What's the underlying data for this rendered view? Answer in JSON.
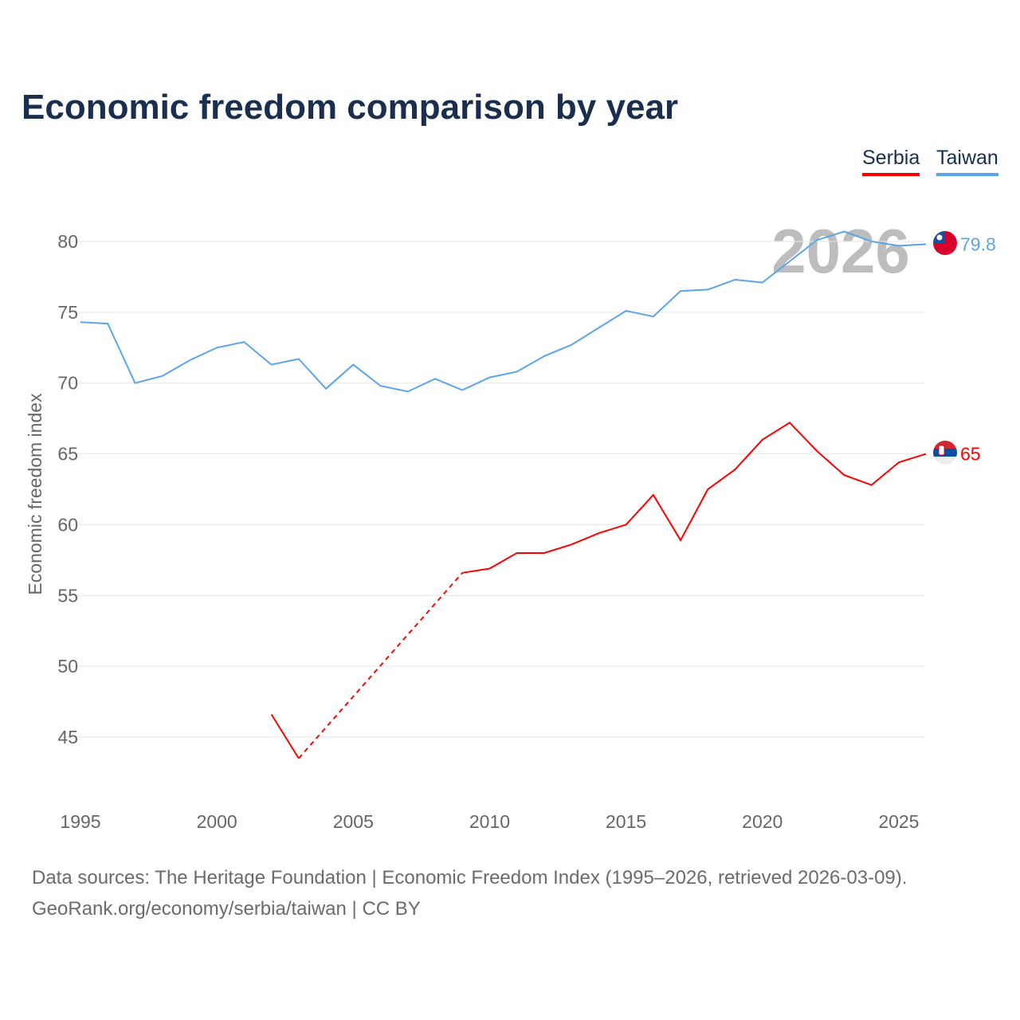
{
  "title": "Economic freedom comparison by year",
  "footer": {
    "line1": "Data sources: The Heritage Foundation | Economic Freedom Index (1995–2026, retrieved 2026-03-09).",
    "line2": "GeoRank.org/economy/serbia/taiwan | CC BY"
  },
  "chart_data": {
    "type": "line",
    "title": "Economic freedom comparison by year",
    "xlabel": "",
    "ylabel": "Economic freedom index",
    "xlim": [
      1995,
      2026
    ],
    "ylim": [
      41,
      82
    ],
    "yticks": [
      45,
      50,
      55,
      60,
      65,
      70,
      75,
      80
    ],
    "xticks": [
      1995,
      2000,
      2005,
      2010,
      2015,
      2020,
      2025
    ],
    "current_year_label": "2026",
    "legend_placement": "top-right",
    "x": [
      1995,
      1996,
      1997,
      1998,
      1999,
      2000,
      2001,
      2002,
      2003,
      2004,
      2005,
      2006,
      2007,
      2008,
      2009,
      2010,
      2011,
      2012,
      2013,
      2014,
      2015,
      2016,
      2017,
      2018,
      2019,
      2020,
      2021,
      2022,
      2023,
      2024,
      2025,
      2026
    ],
    "series": [
      {
        "name": "Serbia",
        "color": "#ff0000",
        "end_label": "65",
        "values": [
          null,
          null,
          null,
          null,
          null,
          null,
          null,
          46.6,
          43.5,
          null,
          null,
          null,
          null,
          null,
          56.6,
          56.9,
          58.0,
          58.0,
          58.6,
          59.4,
          60.0,
          62.1,
          58.9,
          62.5,
          63.9,
          66.0,
          67.2,
          65.2,
          63.5,
          62.8,
          64.4,
          65.0
        ]
      },
      {
        "name": "Taiwan",
        "color": "#5ba4ea",
        "end_label": "79.8",
        "values": [
          74.3,
          74.2,
          70.0,
          70.5,
          71.6,
          72.5,
          72.9,
          71.3,
          71.7,
          69.6,
          71.3,
          69.8,
          69.4,
          70.3,
          69.5,
          70.4,
          70.8,
          71.9,
          72.7,
          73.9,
          75.1,
          74.7,
          76.5,
          76.6,
          77.3,
          77.1,
          78.6,
          80.1,
          80.7,
          80.0,
          79.7,
          79.8
        ]
      }
    ]
  }
}
